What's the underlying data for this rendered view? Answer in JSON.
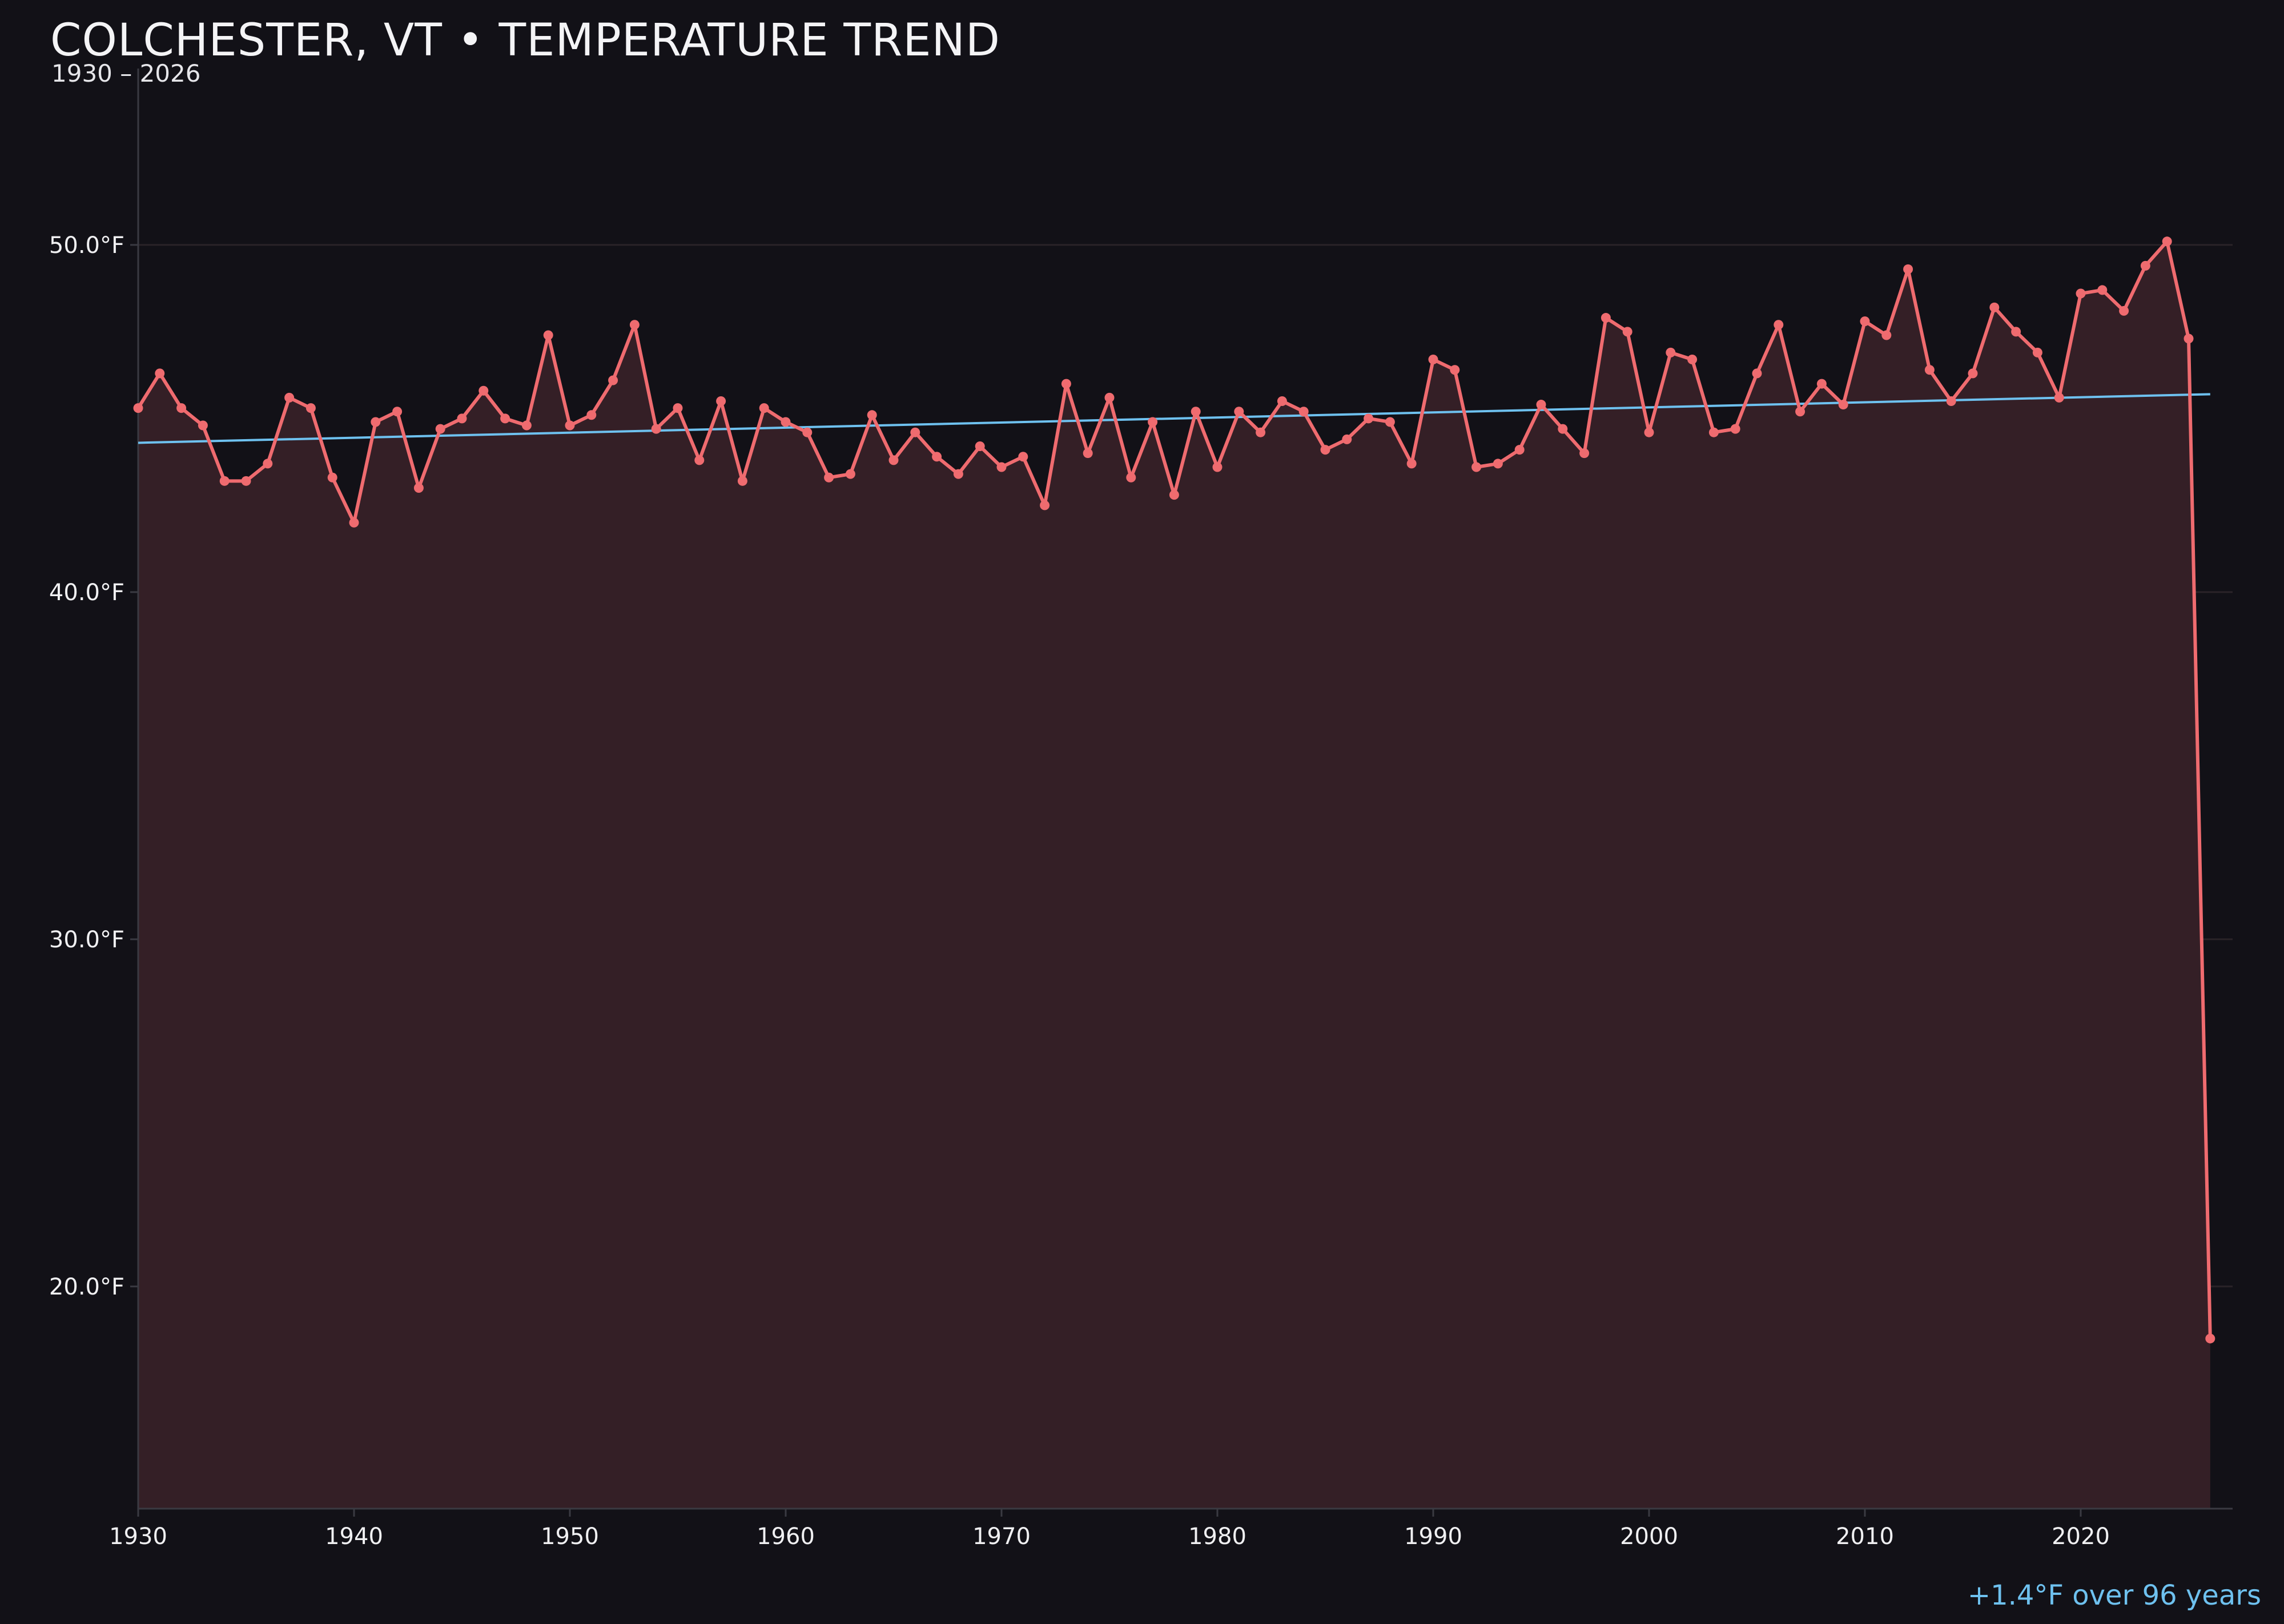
{
  "header": {
    "title": "COLCHESTER, VT • TEMPERATURE TREND",
    "subtitle": "1930 – 2026"
  },
  "footer": {
    "trend_note": "+1.4°F over 96 years"
  },
  "colors": {
    "background": "#121117",
    "series": "#ef6b6f",
    "area_fill": "#341f26",
    "trend": "#6ec1ef",
    "grid": "#2a2328",
    "axis": "#3a3a42"
  },
  "chart_data": {
    "type": "line",
    "title": "COLCHESTER, VT • TEMPERATURE TREND",
    "subtitle": "1930 – 2026",
    "xlabel": "",
    "ylabel": "",
    "xlim": [
      1930,
      2027
    ],
    "ylim": [
      13.6,
      55.5
    ],
    "x_ticks": [
      1930,
      1940,
      1950,
      1960,
      1970,
      1980,
      1990,
      2000,
      2010,
      2020
    ],
    "y_ticks": [
      {
        "value": 20,
        "label": "20.0°F"
      },
      {
        "value": 30,
        "label": "30.0°F"
      },
      {
        "value": 40,
        "label": "40.0°F"
      },
      {
        "value": 50,
        "label": "50.0°F"
      }
    ],
    "grid": "horizontal",
    "area_fill": true,
    "x": [
      1930,
      1931,
      1932,
      1933,
      1934,
      1935,
      1936,
      1937,
      1938,
      1939,
      1940,
      1941,
      1942,
      1943,
      1944,
      1945,
      1946,
      1947,
      1948,
      1949,
      1950,
      1951,
      1952,
      1953,
      1954,
      1955,
      1956,
      1957,
      1958,
      1959,
      1960,
      1961,
      1962,
      1963,
      1964,
      1965,
      1966,
      1967,
      1968,
      1969,
      1970,
      1971,
      1972,
      1973,
      1974,
      1975,
      1976,
      1977,
      1978,
      1979,
      1980,
      1981,
      1982,
      1983,
      1984,
      1985,
      1986,
      1987,
      1988,
      1989,
      1990,
      1991,
      1992,
      1993,
      1994,
      1995,
      1996,
      1997,
      1998,
      1999,
      2000,
      2001,
      2002,
      2003,
      2004,
      2005,
      2006,
      2007,
      2008,
      2009,
      2010,
      2011,
      2012,
      2013,
      2014,
      2015,
      2016,
      2017,
      2018,
      2019,
      2020,
      2021,
      2022,
      2023,
      2024,
      2025,
      2026
    ],
    "series": [
      {
        "name": "",
        "values": [
          45.3,
          46.3,
          45.3,
          44.8,
          43.2,
          43.2,
          43.7,
          45.6,
          45.3,
          43.3,
          42.0,
          44.9,
          45.2,
          43.0,
          44.7,
          45.0,
          45.8,
          45.0,
          44.8,
          47.4,
          44.8,
          45.1,
          46.1,
          47.7,
          44.7,
          45.3,
          43.8,
          45.5,
          43.2,
          45.3,
          44.9,
          44.6,
          43.3,
          43.4,
          45.1,
          43.8,
          44.6,
          43.9,
          43.4,
          44.2,
          43.6,
          43.9,
          42.5,
          46.0,
          44.0,
          45.6,
          43.3,
          44.9,
          42.8,
          45.2,
          43.6,
          45.2,
          44.6,
          45.5,
          45.2,
          44.1,
          44.4,
          45.0,
          44.9,
          43.7,
          46.7,
          46.4,
          43.6,
          43.7,
          44.1,
          45.4,
          44.7,
          44.0,
          47.9,
          47.5,
          44.6,
          46.9,
          46.7,
          44.6,
          44.7,
          46.3,
          47.7,
          45.2,
          46.0,
          45.4,
          47.8,
          47.4,
          49.3,
          46.4,
          45.5,
          46.3,
          48.2,
          47.5,
          46.9,
          45.6,
          48.6,
          48.7,
          48.1,
          49.4,
          50.1,
          47.3,
          18.5
        ]
      }
    ],
    "trend_line": {
      "x": [
        1930,
        2026
      ],
      "y": [
        44.3,
        45.7
      ]
    },
    "annotation": "+1.4°F over 96 years"
  }
}
